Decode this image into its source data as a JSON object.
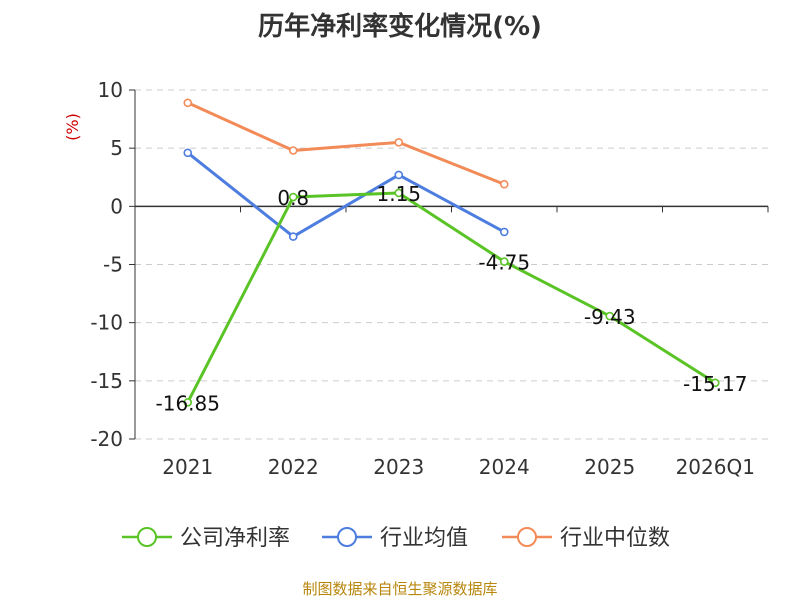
{
  "chart_data": {
    "type": "line",
    "title": "历年净利率变化情况(%)",
    "ylabel": "(%)",
    "categories": [
      "2021",
      "2022",
      "2023",
      "2024",
      "2025",
      "2026Q1"
    ],
    "ylim": [
      -20,
      10
    ],
    "yticks": [
      10,
      5,
      0,
      -5,
      -10,
      -15,
      -20
    ],
    "grid": true,
    "legend_position": "bottom",
    "series": [
      {
        "name": "公司净利率",
        "color": "#5ac427",
        "values": [
          -16.85,
          0.8,
          1.15,
          -4.75,
          -9.43,
          -15.17
        ],
        "labels": [
          "-16.85",
          "0.8",
          "1.15",
          "-4.75",
          "-9.43",
          "-15.17"
        ]
      },
      {
        "name": "行业均值",
        "color": "#4e7de0",
        "values": [
          4.6,
          -2.6,
          2.7,
          -2.2,
          null,
          null
        ]
      },
      {
        "name": "行业中位数",
        "color": "#f28b58",
        "values": [
          8.9,
          4.8,
          5.5,
          1.9,
          null,
          null
        ]
      }
    ],
    "source": "制图数据来自恒生聚源数据库"
  }
}
